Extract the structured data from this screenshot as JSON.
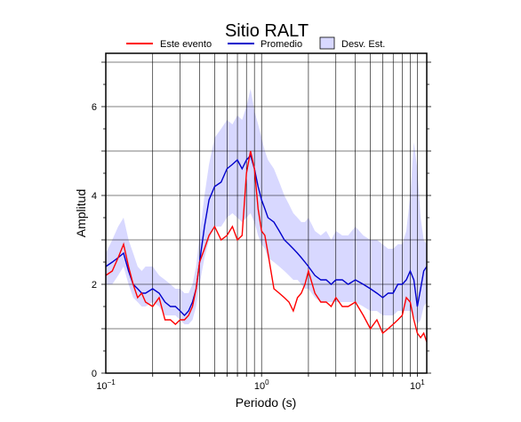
{
  "chart_data": {
    "type": "line",
    "title": "Sitio RALT",
    "xlabel": "Periodo (s)",
    "ylabel": "Amplitud",
    "x_scale": "log",
    "xlim": [
      0.1,
      11.5
    ],
    "ylim": [
      0,
      7.2
    ],
    "x_ticks": [
      {
        "value": 0.1,
        "base": "10",
        "exp": "−1"
      },
      {
        "value": 1,
        "base": "10",
        "exp": "0"
      },
      {
        "value": 10,
        "base": "10",
        "exp": "1"
      }
    ],
    "y_ticks": [
      0,
      2,
      4,
      6
    ],
    "grid": true,
    "legend_position": "top",
    "x": [
      0.1,
      0.11,
      0.12,
      0.13,
      0.14,
      0.15,
      0.16,
      0.17,
      0.18,
      0.2,
      0.22,
      0.24,
      0.26,
      0.28,
      0.3,
      0.32,
      0.34,
      0.36,
      0.38,
      0.4,
      0.43,
      0.46,
      0.5,
      0.55,
      0.6,
      0.65,
      0.7,
      0.75,
      0.8,
      0.85,
      0.9,
      0.95,
      1.0,
      1.05,
      1.1,
      1.2,
      1.3,
      1.4,
      1.5,
      1.6,
      1.7,
      1.8,
      1.9,
      2.0,
      2.2,
      2.4,
      2.6,
      2.8,
      3.0,
      3.3,
      3.6,
      4.0,
      4.5,
      5.0,
      5.5,
      6.0,
      6.5,
      7.0,
      7.5,
      8.0,
      8.5,
      9.0,
      9.5,
      10.0,
      10.5,
      11.0,
      11.5
    ],
    "series": [
      {
        "name": "Este evento",
        "color": "#ff0000",
        "values": [
          2.2,
          2.3,
          2.6,
          2.9,
          2.4,
          2.0,
          1.7,
          1.8,
          1.6,
          1.5,
          1.7,
          1.2,
          1.2,
          1.1,
          1.2,
          1.2,
          1.3,
          1.5,
          1.9,
          2.5,
          2.8,
          3.1,
          3.3,
          3.0,
          3.1,
          3.3,
          3.0,
          3.1,
          4.5,
          5.0,
          4.6,
          3.7,
          3.2,
          3.1,
          2.7,
          1.9,
          1.8,
          1.7,
          1.6,
          1.4,
          1.7,
          1.8,
          2.0,
          2.3,
          1.8,
          1.6,
          1.6,
          1.5,
          1.7,
          1.5,
          1.5,
          1.6,
          1.3,
          1.0,
          1.2,
          0.9,
          1.0,
          1.1,
          1.2,
          1.3,
          1.7,
          1.6,
          1.2,
          0.9,
          0.8,
          0.9,
          0.7
        ]
      },
      {
        "name": "Promedio",
        "color": "#0000cc",
        "values": [
          2.4,
          2.5,
          2.6,
          2.7,
          2.3,
          2.0,
          1.9,
          1.8,
          1.8,
          1.9,
          1.8,
          1.6,
          1.5,
          1.5,
          1.4,
          1.3,
          1.4,
          1.6,
          1.9,
          2.5,
          3.3,
          3.9,
          4.2,
          4.3,
          4.6,
          4.7,
          4.8,
          4.6,
          4.8,
          4.9,
          4.6,
          4.2,
          3.9,
          3.7,
          3.5,
          3.4,
          3.2,
          3.0,
          2.9,
          2.8,
          2.7,
          2.6,
          2.5,
          2.4,
          2.2,
          2.1,
          2.1,
          2.0,
          2.1,
          2.1,
          2.0,
          2.1,
          2.0,
          1.9,
          1.8,
          1.7,
          1.8,
          1.8,
          2.0,
          2.0,
          2.1,
          2.3,
          2.1,
          1.5,
          1.9,
          2.3,
          2.4
        ]
      }
    ],
    "band": {
      "name": "Desv. Est.",
      "color": "#d8d8ff",
      "edge_color": "#000000",
      "lower": [
        2.0,
        2.0,
        2.2,
        2.4,
        2.0,
        1.7,
        1.6,
        1.5,
        1.5,
        1.6,
        1.5,
        1.3,
        1.3,
        1.3,
        1.2,
        1.1,
        1.1,
        1.2,
        1.5,
        2.0,
        2.6,
        3.0,
        3.3,
        3.3,
        3.5,
        3.6,
        3.5,
        3.4,
        3.5,
        3.6,
        3.4,
        3.1,
        2.9,
        2.8,
        2.6,
        2.5,
        2.4,
        2.3,
        2.2,
        2.1,
        2.1,
        2.0,
        1.9,
        1.9,
        1.7,
        1.6,
        1.6,
        1.6,
        1.6,
        1.6,
        1.6,
        1.6,
        1.5,
        1.4,
        1.4,
        1.3,
        1.3,
        1.3,
        1.4,
        1.4,
        1.4,
        1.4,
        1.3,
        1.1,
        1.2,
        1.5,
        1.6
      ],
      "upper": [
        2.7,
        3.0,
        3.3,
        3.5,
        3.0,
        2.7,
        2.4,
        2.3,
        2.4,
        2.4,
        2.2,
        2.1,
        2.0,
        1.9,
        1.9,
        1.8,
        1.8,
        2.0,
        2.4,
        3.1,
        4.0,
        4.7,
        5.3,
        5.5,
        5.7,
        5.6,
        5.8,
        5.7,
        6.0,
        6.4,
        5.9,
        5.6,
        5.3,
        5.0,
        4.8,
        4.6,
        4.3,
        4.0,
        3.8,
        3.6,
        3.5,
        3.4,
        3.4,
        3.5,
        3.2,
        3.1,
        3.2,
        3.0,
        3.2,
        3.1,
        3.1,
        3.3,
        3.1,
        3.0,
        3.0,
        2.9,
        2.8,
        2.8,
        2.9,
        2.9,
        3.2,
        4.0,
        5.2,
        4.6,
        3.5,
        3.0,
        2.9
      ]
    }
  }
}
